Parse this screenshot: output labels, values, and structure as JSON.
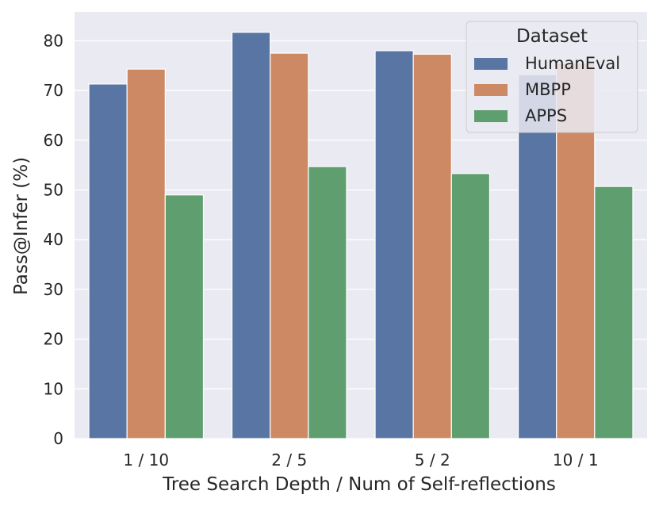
{
  "chart_data": {
    "type": "bar",
    "categories": [
      "1 / 10",
      "2 / 5",
      "5 / 2",
      "10 / 1"
    ],
    "series": [
      {
        "name": "HumanEval",
        "values": [
          71.3,
          81.7,
          78.0,
          73.2
        ]
      },
      {
        "name": "MBPP",
        "values": [
          74.3,
          77.5,
          77.3,
          75.5
        ]
      },
      {
        "name": "APPS",
        "values": [
          49.0,
          54.7,
          53.3,
          50.7
        ]
      }
    ],
    "xlabel": "Tree Search Depth / Num of Self-reflections",
    "ylabel": "Pass@Infer (%)",
    "ylim": [
      0,
      85.8
    ],
    "yticks": [
      0,
      10,
      20,
      30,
      40,
      50,
      60,
      70,
      80
    ],
    "grid": true,
    "legend": {
      "title": "Dataset",
      "placement": "top-right"
    },
    "colors": {
      "HumanEval": "#5975a4",
      "MBPP": "#cc8963",
      "APPS": "#5f9e6e",
      "background": "#eaeaf2",
      "grid": "#ffffff"
    }
  }
}
